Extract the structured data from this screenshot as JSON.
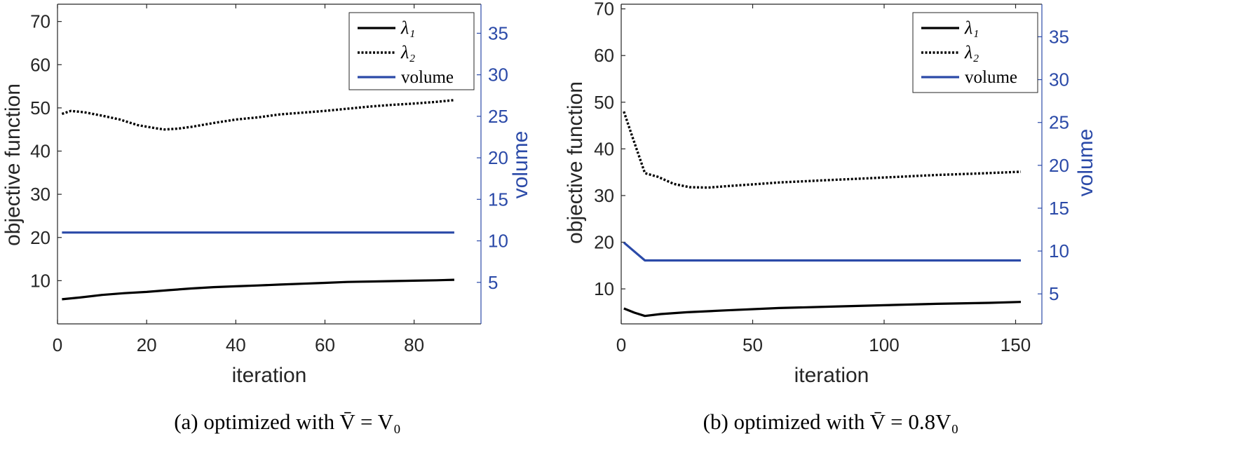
{
  "chart_data": [
    {
      "type": "line",
      "caption": "(a)  optimized with V̄ = V₀",
      "xlabel": "iteration",
      "ylabel": "objective function",
      "ylabel_right": "volume",
      "xlim": [
        0,
        95
      ],
      "ylim": [
        0,
        74
      ],
      "ylim_right": [
        0,
        38.5
      ],
      "xticks": [
        0,
        20,
        40,
        60,
        80
      ],
      "yticks": [
        10,
        20,
        30,
        40,
        50,
        60,
        70
      ],
      "yticks_right": [
        5,
        10,
        15,
        20,
        25,
        30,
        35
      ],
      "legend": [
        "λ₁",
        "λ₂",
        "volume"
      ],
      "legend_position": "top-right",
      "series": [
        {
          "name": "λ₁",
          "axis": "left",
          "style": "solid",
          "color": "#000000",
          "x": [
            1,
            5,
            10,
            15,
            20,
            25,
            30,
            35,
            40,
            45,
            50,
            55,
            60,
            65,
            70,
            75,
            80,
            85,
            89
          ],
          "y": [
            5.7,
            6.1,
            6.7,
            7.1,
            7.4,
            7.8,
            8.2,
            8.5,
            8.7,
            8.9,
            9.1,
            9.3,
            9.5,
            9.7,
            9.8,
            9.9,
            10.0,
            10.1,
            10.2
          ]
        },
        {
          "name": "λ₂",
          "axis": "left",
          "style": "dotted",
          "color": "#000000",
          "x": [
            1,
            3,
            6,
            10,
            14,
            18,
            22,
            24,
            27,
            30,
            35,
            40,
            45,
            50,
            55,
            60,
            65,
            70,
            75,
            80,
            85,
            89
          ],
          "y": [
            48.6,
            49.3,
            49.0,
            48.2,
            47.3,
            46.0,
            45.3,
            45.0,
            45.2,
            45.6,
            46.5,
            47.3,
            47.8,
            48.5,
            48.9,
            49.3,
            49.8,
            50.3,
            50.7,
            51.0,
            51.4,
            51.8
          ]
        },
        {
          "name": "volume",
          "axis": "right",
          "style": "solid",
          "color": "#2b4aa8",
          "x": [
            1,
            10,
            20,
            30,
            40,
            50,
            60,
            70,
            80,
            89
          ],
          "y": [
            11.0,
            11.0,
            11.0,
            11.0,
            11.0,
            11.0,
            11.0,
            11.0,
            11.0,
            11.0
          ]
        }
      ]
    },
    {
      "type": "line",
      "caption": "(b)  optimized with V̄ = 0.8V₀",
      "xlabel": "iteration",
      "ylabel": "objective function",
      "ylabel_right": "volume",
      "xlim": [
        0,
        160
      ],
      "ylim": [
        2.5,
        71
      ],
      "ylim_right": [
        1.5,
        38.8
      ],
      "xticks": [
        0,
        50,
        100,
        150
      ],
      "yticks": [
        10,
        20,
        30,
        40,
        50,
        60,
        70
      ],
      "yticks_right": [
        5,
        10,
        15,
        20,
        25,
        30,
        35
      ],
      "legend": [
        "λ₁",
        "λ₂",
        "volume"
      ],
      "legend_position": "top-right",
      "series": [
        {
          "name": "λ₁",
          "axis": "left",
          "style": "solid",
          "color": "#000000",
          "x": [
            1,
            5,
            9,
            15,
            25,
            40,
            60,
            80,
            100,
            120,
            140,
            152
          ],
          "y": [
            5.8,
            4.9,
            4.2,
            4.6,
            5.0,
            5.4,
            5.9,
            6.2,
            6.5,
            6.8,
            7.0,
            7.2
          ]
        },
        {
          "name": "λ₂",
          "axis": "left",
          "style": "dotted",
          "color": "#000000",
          "x": [
            1,
            4,
            9,
            14,
            20,
            26,
            33,
            40,
            50,
            60,
            75,
            90,
            105,
            120,
            135,
            152
          ],
          "y": [
            48.0,
            43.0,
            34.8,
            34.0,
            32.5,
            31.8,
            31.7,
            32.0,
            32.4,
            32.8,
            33.2,
            33.6,
            34.0,
            34.4,
            34.7,
            35.1
          ]
        },
        {
          "name": "volume",
          "axis": "right",
          "style": "solid",
          "color": "#2b4aa8",
          "x": [
            1,
            4,
            9,
            20,
            40,
            60,
            80,
            100,
            120,
            140,
            152
          ],
          "y": [
            11.0,
            10.2,
            8.9,
            8.9,
            8.9,
            8.9,
            8.9,
            8.9,
            8.9,
            8.9,
            8.9
          ]
        }
      ]
    }
  ]
}
